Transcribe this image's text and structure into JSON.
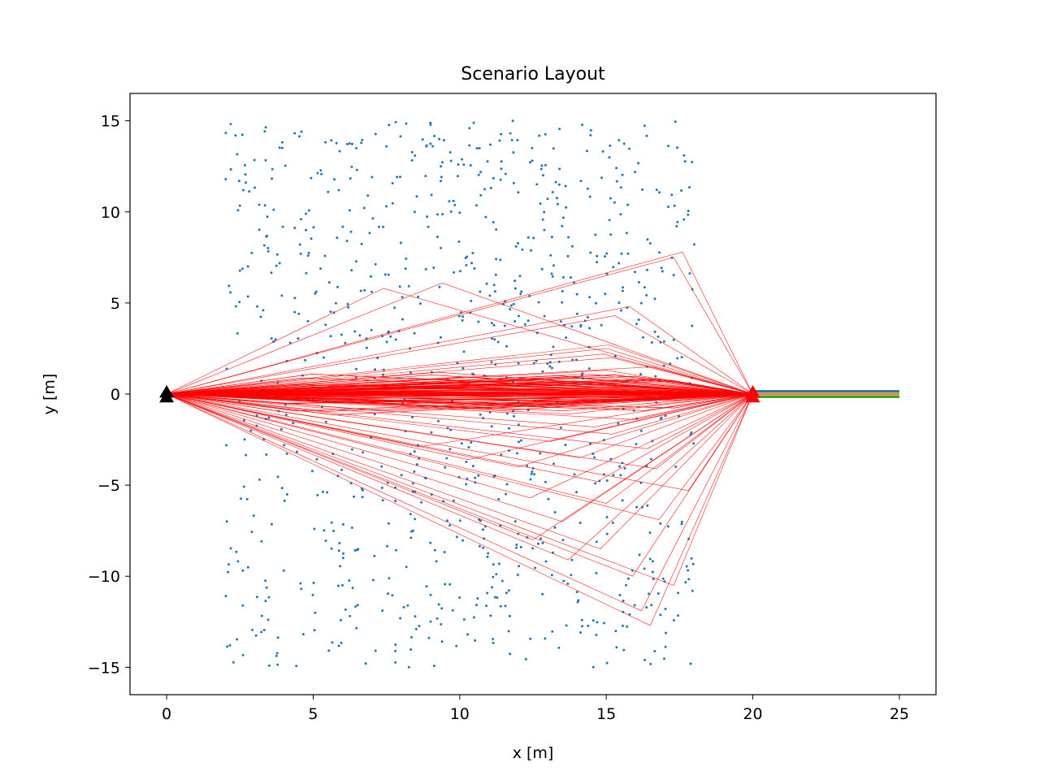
{
  "chart_data": {
    "type": "scatter",
    "title": "Scenario Layout",
    "xlabel": "x [m]",
    "ylabel": "y [m]",
    "xlim": [
      -1.25,
      26.25
    ],
    "ylim": [
      -16.5,
      16.5
    ],
    "xticks": [
      0,
      5,
      10,
      15,
      20,
      25
    ],
    "yticks": [
      15,
      10,
      5,
      0,
      -5,
      -10,
      -15
    ],
    "xtick_labels": [
      "0",
      "5",
      "10",
      "15",
      "20",
      "25"
    ],
    "ytick_labels": [
      "15",
      "10",
      "5",
      "0",
      "−5",
      "−10",
      "−15"
    ],
    "grid": false,
    "colors": {
      "scatterers": "#1f77b4",
      "paths": "#ff0000",
      "tx": "#000000",
      "rx": "#ff0000",
      "rx_lines": [
        "#1f77b4",
        "#ff7f0e",
        "#2ca02c"
      ]
    },
    "scatterers": {
      "count": 950,
      "x_range": [
        2.0,
        18.0
      ],
      "y_range": [
        -15.0,
        15.0
      ]
    },
    "transmitter": {
      "x": 0,
      "y": 0,
      "marker": "triangle"
    },
    "receiver": {
      "x": 20,
      "y": 0,
      "marker": "triangle"
    },
    "receiver_array_lines": [
      {
        "x": [
          20,
          25
        ],
        "y": [
          0.15,
          0.15
        ]
      },
      {
        "x": [
          20,
          25
        ],
        "y": [
          0.0,
          0.0
        ]
      },
      {
        "x": [
          20,
          25
        ],
        "y": [
          -0.15,
          -0.15
        ]
      }
    ],
    "direct_path": {
      "x": [
        0,
        20
      ],
      "y": [
        0,
        0
      ]
    },
    "single_bounce_paths": [
      [
        17.6,
        7.8
      ],
      [
        17.3,
        7.5
      ],
      [
        15.8,
        4.8
      ],
      [
        15.3,
        4.3
      ],
      [
        9.4,
        6.1
      ],
      [
        7.4,
        5.8
      ],
      [
        15.1,
        2.7
      ],
      [
        15.0,
        2.5
      ],
      [
        14.9,
        2.2
      ],
      [
        15.2,
        2.0
      ],
      [
        16.6,
        1.5
      ],
      [
        15.0,
        1.3
      ],
      [
        14.5,
        1.1
      ],
      [
        13.9,
        0.9
      ],
      [
        16.9,
        0.8
      ],
      [
        12.0,
        0.7
      ],
      [
        15.5,
        0.6
      ],
      [
        10.8,
        0.5
      ],
      [
        16.3,
        0.4
      ],
      [
        13.2,
        0.3
      ],
      [
        17.5,
        -0.2
      ],
      [
        14.0,
        -0.4
      ],
      [
        12.4,
        -0.6
      ],
      [
        15.8,
        -0.8
      ],
      [
        13.7,
        -1.1
      ],
      [
        16.0,
        -1.4
      ],
      [
        14.6,
        -1.8
      ],
      [
        15.2,
        -2.2
      ],
      [
        13.1,
        -2.6
      ],
      [
        16.4,
        -3.0
      ],
      [
        14.1,
        -3.5
      ],
      [
        12.0,
        -4.0
      ],
      [
        16.7,
        -4.1
      ],
      [
        14.7,
        -4.8
      ],
      [
        12.4,
        -5.7
      ],
      [
        15.0,
        -6.0
      ],
      [
        13.5,
        -7.0
      ],
      [
        12.5,
        -8.0
      ],
      [
        14.8,
        -8.5
      ],
      [
        13.7,
        -9.1
      ],
      [
        15.9,
        -10.0
      ],
      [
        17.3,
        -10.5
      ],
      [
        16.5,
        -12.7
      ],
      [
        16.2,
        -11.9
      ],
      [
        10.3,
        -3.6
      ],
      [
        8.6,
        -2.9
      ],
      [
        16.8,
        -6.9
      ],
      [
        17.8,
        -5.3
      ]
    ]
  }
}
